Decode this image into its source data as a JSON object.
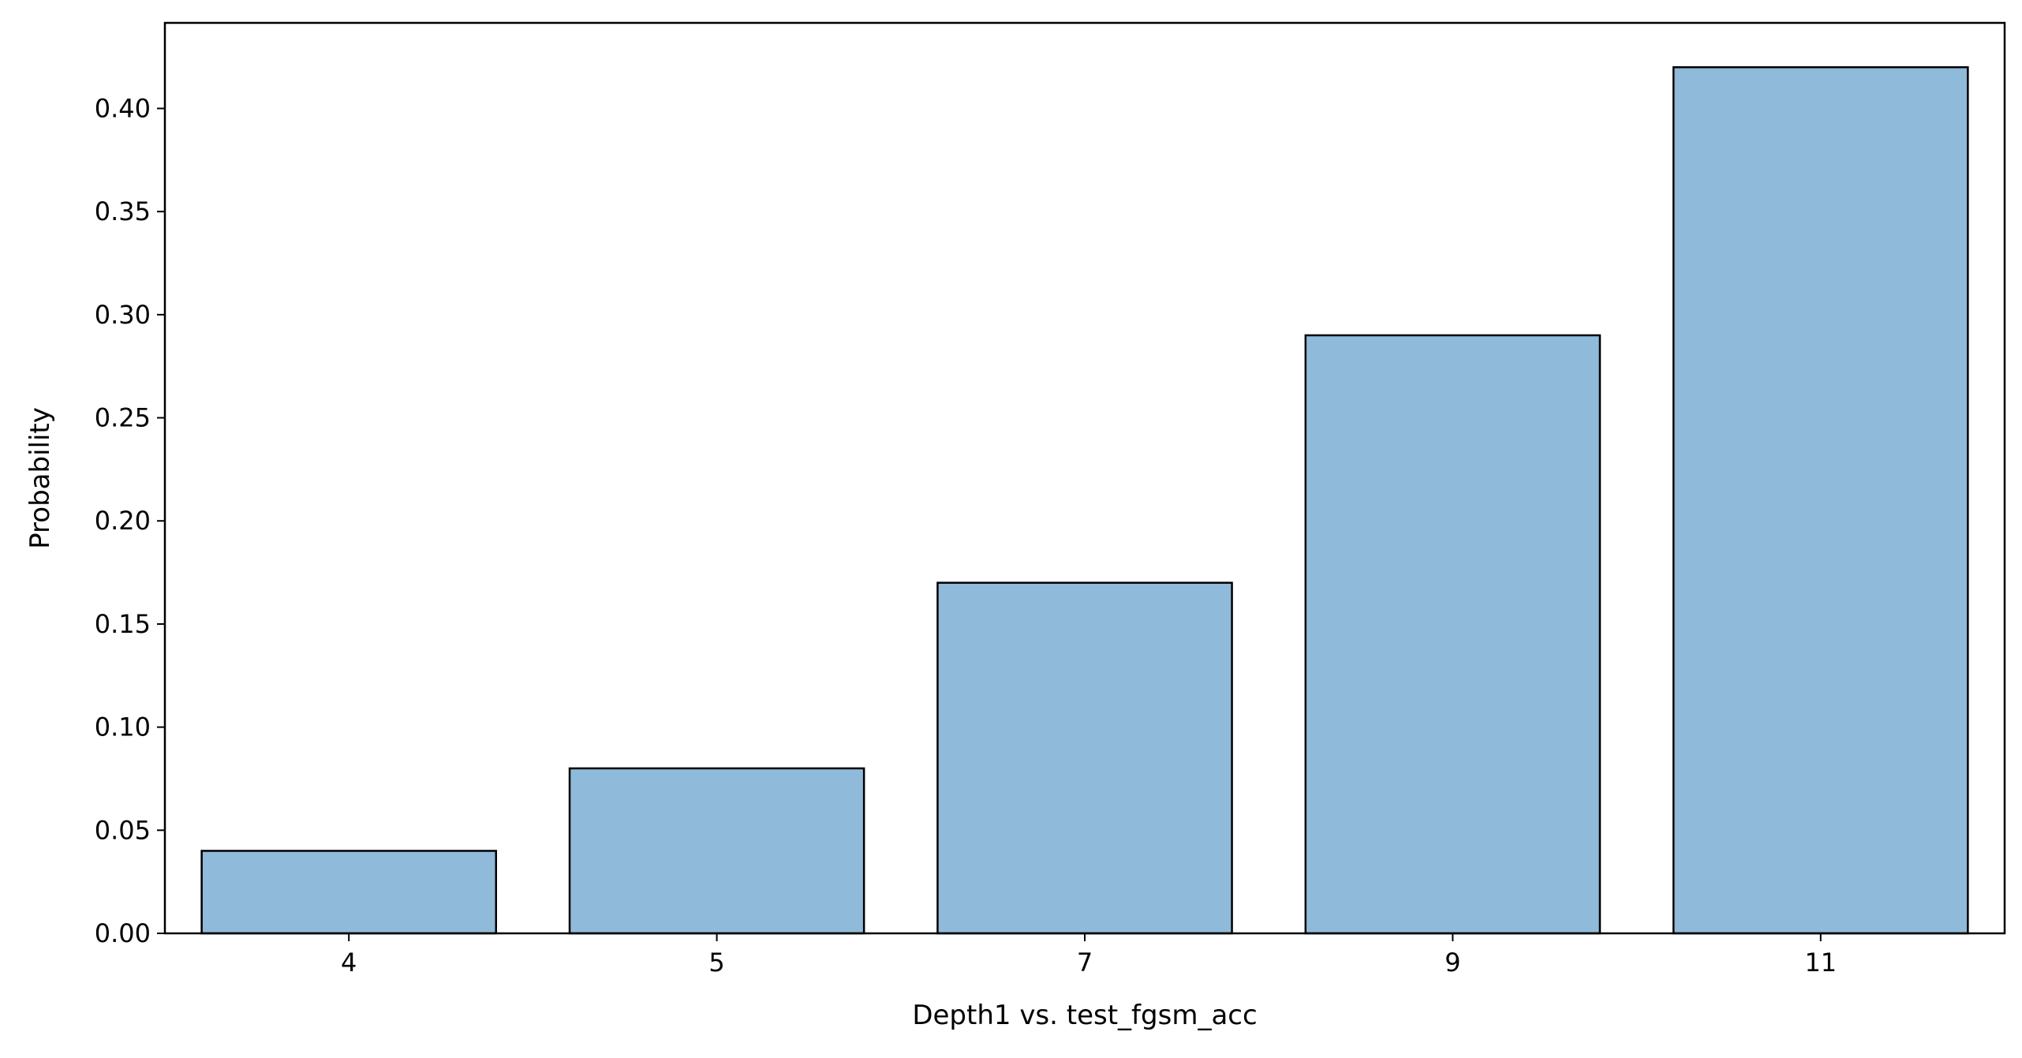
{
  "chart_data": {
    "type": "bar",
    "categories": [
      "4",
      "5",
      "7",
      "9",
      "11"
    ],
    "values": [
      0.04,
      0.08,
      0.17,
      0.29,
      0.42
    ],
    "xlabel": "Depth1 vs. test_fgsm_acc",
    "ylabel": "Probability",
    "ylim": [
      0,
      0.4415
    ],
    "yticks": [
      "0.00",
      "0.05",
      "0.10",
      "0.15",
      "0.20",
      "0.25",
      "0.30",
      "0.35",
      "0.40"
    ],
    "grid": false,
    "legend": "none",
    "colors": {
      "bar_fill": "#8fbad9",
      "bar_edge": "#000000",
      "axes": "#000000"
    }
  }
}
